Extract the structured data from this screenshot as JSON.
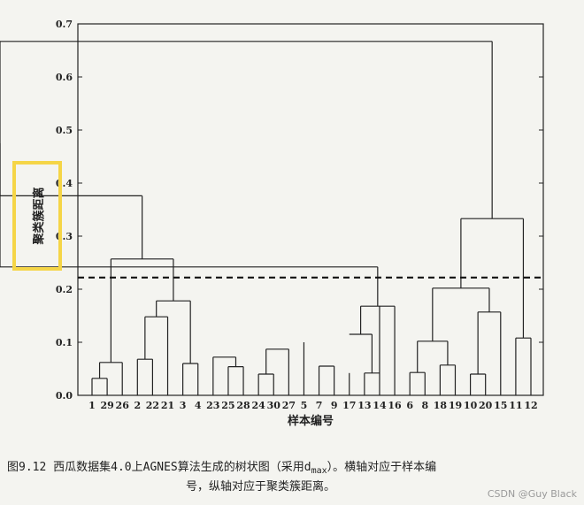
{
  "chart_data": {
    "type": "dendrogram",
    "ylabel": "聚类簇距离",
    "xlabel": "样本编号",
    "ylim": [
      0,
      0.7
    ],
    "yticks": [
      "0.0",
      "0.1",
      "0.2",
      "0.3",
      "0.4",
      "0.5",
      "0.6",
      "0.7"
    ],
    "cut_line_y": 0.222,
    "leaf_order": [
      "1",
      "29",
      "26",
      "2",
      "22",
      "21",
      "3",
      "4",
      "23",
      "25",
      "28",
      "24",
      "30",
      "27",
      "5",
      "7",
      "9",
      "17",
      "13",
      "14",
      "16",
      "6",
      "8",
      "18",
      "19",
      "10",
      "20",
      "15",
      "11",
      "12"
    ],
    "leaf_heights": [
      0.032,
      0.032,
      0.062,
      0.068,
      0.068,
      0.148,
      0.06,
      0.06,
      0.072,
      0.054,
      0.054,
      0.04,
      0.04,
      0.087,
      0.1,
      0.055,
      0.055,
      0.042,
      0.042,
      0.168,
      0.168,
      0.043,
      0.043,
      0.057,
      0.057,
      0.04,
      0.04,
      0.157,
      0.108,
      0.108
    ],
    "merges": [
      {
        "height": 0.032,
        "left": "1",
        "right": "29"
      },
      {
        "height": 0.062,
        "left": "1+29",
        "right": "26"
      },
      {
        "height": 0.068,
        "left": "2",
        "right": "22"
      },
      {
        "height": 0.148,
        "left": "2+22",
        "right": "21"
      },
      {
        "height": 0.06,
        "left": "3",
        "right": "4"
      },
      {
        "height": 0.178,
        "left": "2+22+21",
        "right": "3+4"
      },
      {
        "height": 0.257,
        "left": "1+29+26",
        "right": "2..4"
      },
      {
        "height": 0.054,
        "left": "25",
        "right": "28"
      },
      {
        "height": 0.072,
        "left": "23",
        "right": "25+28"
      },
      {
        "height": 0.04,
        "left": "24",
        "right": "30"
      },
      {
        "height": 0.087,
        "left": "24+30",
        "right": "27"
      },
      {
        "height": 0.376,
        "left": "1..4",
        "right": "23..28"
      },
      {
        "height": 0.055,
        "left": "7",
        "right": "9"
      },
      {
        "height": 0.042,
        "left": "13",
        "right": "14"
      },
      {
        "height": 0.115,
        "left": "17",
        "right": "13+14"
      },
      {
        "height": 0.168,
        "left": "17+13+14",
        "right": "16"
      },
      {
        "height": 0.242,
        "left": "5+7+9",
        "right": "17..16"
      },
      {
        "height": 0.475,
        "left": "1..28",
        "right": "5..16"
      },
      {
        "height": 0.043,
        "left": "6",
        "right": "8"
      },
      {
        "height": 0.057,
        "left": "18",
        "right": "19"
      },
      {
        "height": 0.102,
        "left": "6+8",
        "right": "18+19"
      },
      {
        "height": 0.04,
        "left": "10",
        "right": "20"
      },
      {
        "height": 0.157,
        "left": "10+20",
        "right": "15"
      },
      {
        "height": 0.202,
        "left": "6..19",
        "right": "10+20+15"
      },
      {
        "height": 0.108,
        "left": "11",
        "right": "12"
      },
      {
        "height": 0.333,
        "left": "6..15",
        "right": "11+12"
      },
      {
        "height": 0.667,
        "left": "1..16",
        "right": "6..12"
      }
    ]
  },
  "caption": {
    "line1_prefix": "图9.12 西瓜数据集4.0上AGNES算法生成的树状图（采用d",
    "line1_sub": "max",
    "line1_suffix": "）。横轴对应于样本编",
    "line2": "号，纵轴对应于聚类簇距离。"
  },
  "watermark": "CSDN @Guy Black",
  "highlight_color": "#f5d547"
}
